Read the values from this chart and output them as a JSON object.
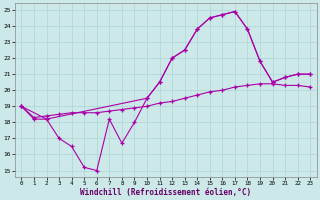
{
  "xlabel": "Windchill (Refroidissement éolien,°C)",
  "bg_color": "#cce8e8",
  "grid_color": "#aad4d4",
  "line_color": "#aa00aa",
  "xlim": [
    -0.5,
    23.5
  ],
  "ylim": [
    14.6,
    25.4
  ],
  "yticks": [
    15,
    16,
    17,
    18,
    19,
    20,
    21,
    22,
    23,
    24,
    25
  ],
  "xticks": [
    0,
    1,
    2,
    3,
    4,
    5,
    6,
    7,
    8,
    9,
    10,
    11,
    12,
    13,
    14,
    15,
    16,
    17,
    18,
    19,
    20,
    21,
    22,
    23
  ],
  "line1_x": [
    0,
    1,
    2,
    3,
    4,
    5,
    6,
    7,
    8,
    9,
    10,
    11,
    12,
    13,
    14,
    15,
    16,
    17,
    18,
    19,
    20,
    21,
    22,
    23
  ],
  "line1_y": [
    19.0,
    18.2,
    18.2,
    17.0,
    16.5,
    15.2,
    15.0,
    18.2,
    16.7,
    18.0,
    19.5,
    20.5,
    22.0,
    22.5,
    23.8,
    24.5,
    24.7,
    24.9,
    23.8,
    21.8,
    20.5,
    20.8,
    21.0,
    21.0
  ],
  "line2_x": [
    0,
    1,
    2,
    3,
    4,
    5,
    6,
    7,
    8,
    9,
    10,
    11,
    12,
    13,
    14,
    15,
    16,
    17,
    18,
    19,
    20,
    21,
    22,
    23
  ],
  "line2_y": [
    19.0,
    18.3,
    18.4,
    18.5,
    18.6,
    18.6,
    18.6,
    18.7,
    18.8,
    18.9,
    19.0,
    19.2,
    19.3,
    19.5,
    19.7,
    19.9,
    20.0,
    20.2,
    20.3,
    20.4,
    20.4,
    20.3,
    20.3,
    20.2
  ],
  "line3_x": [
    0,
    2,
    10,
    11,
    12,
    13,
    14,
    15,
    16,
    17,
    18,
    19,
    20,
    21,
    22,
    23
  ],
  "line3_y": [
    19.0,
    18.2,
    19.5,
    20.5,
    22.0,
    22.5,
    23.8,
    24.5,
    24.7,
    24.9,
    23.8,
    21.8,
    20.5,
    20.8,
    21.0,
    21.0
  ]
}
